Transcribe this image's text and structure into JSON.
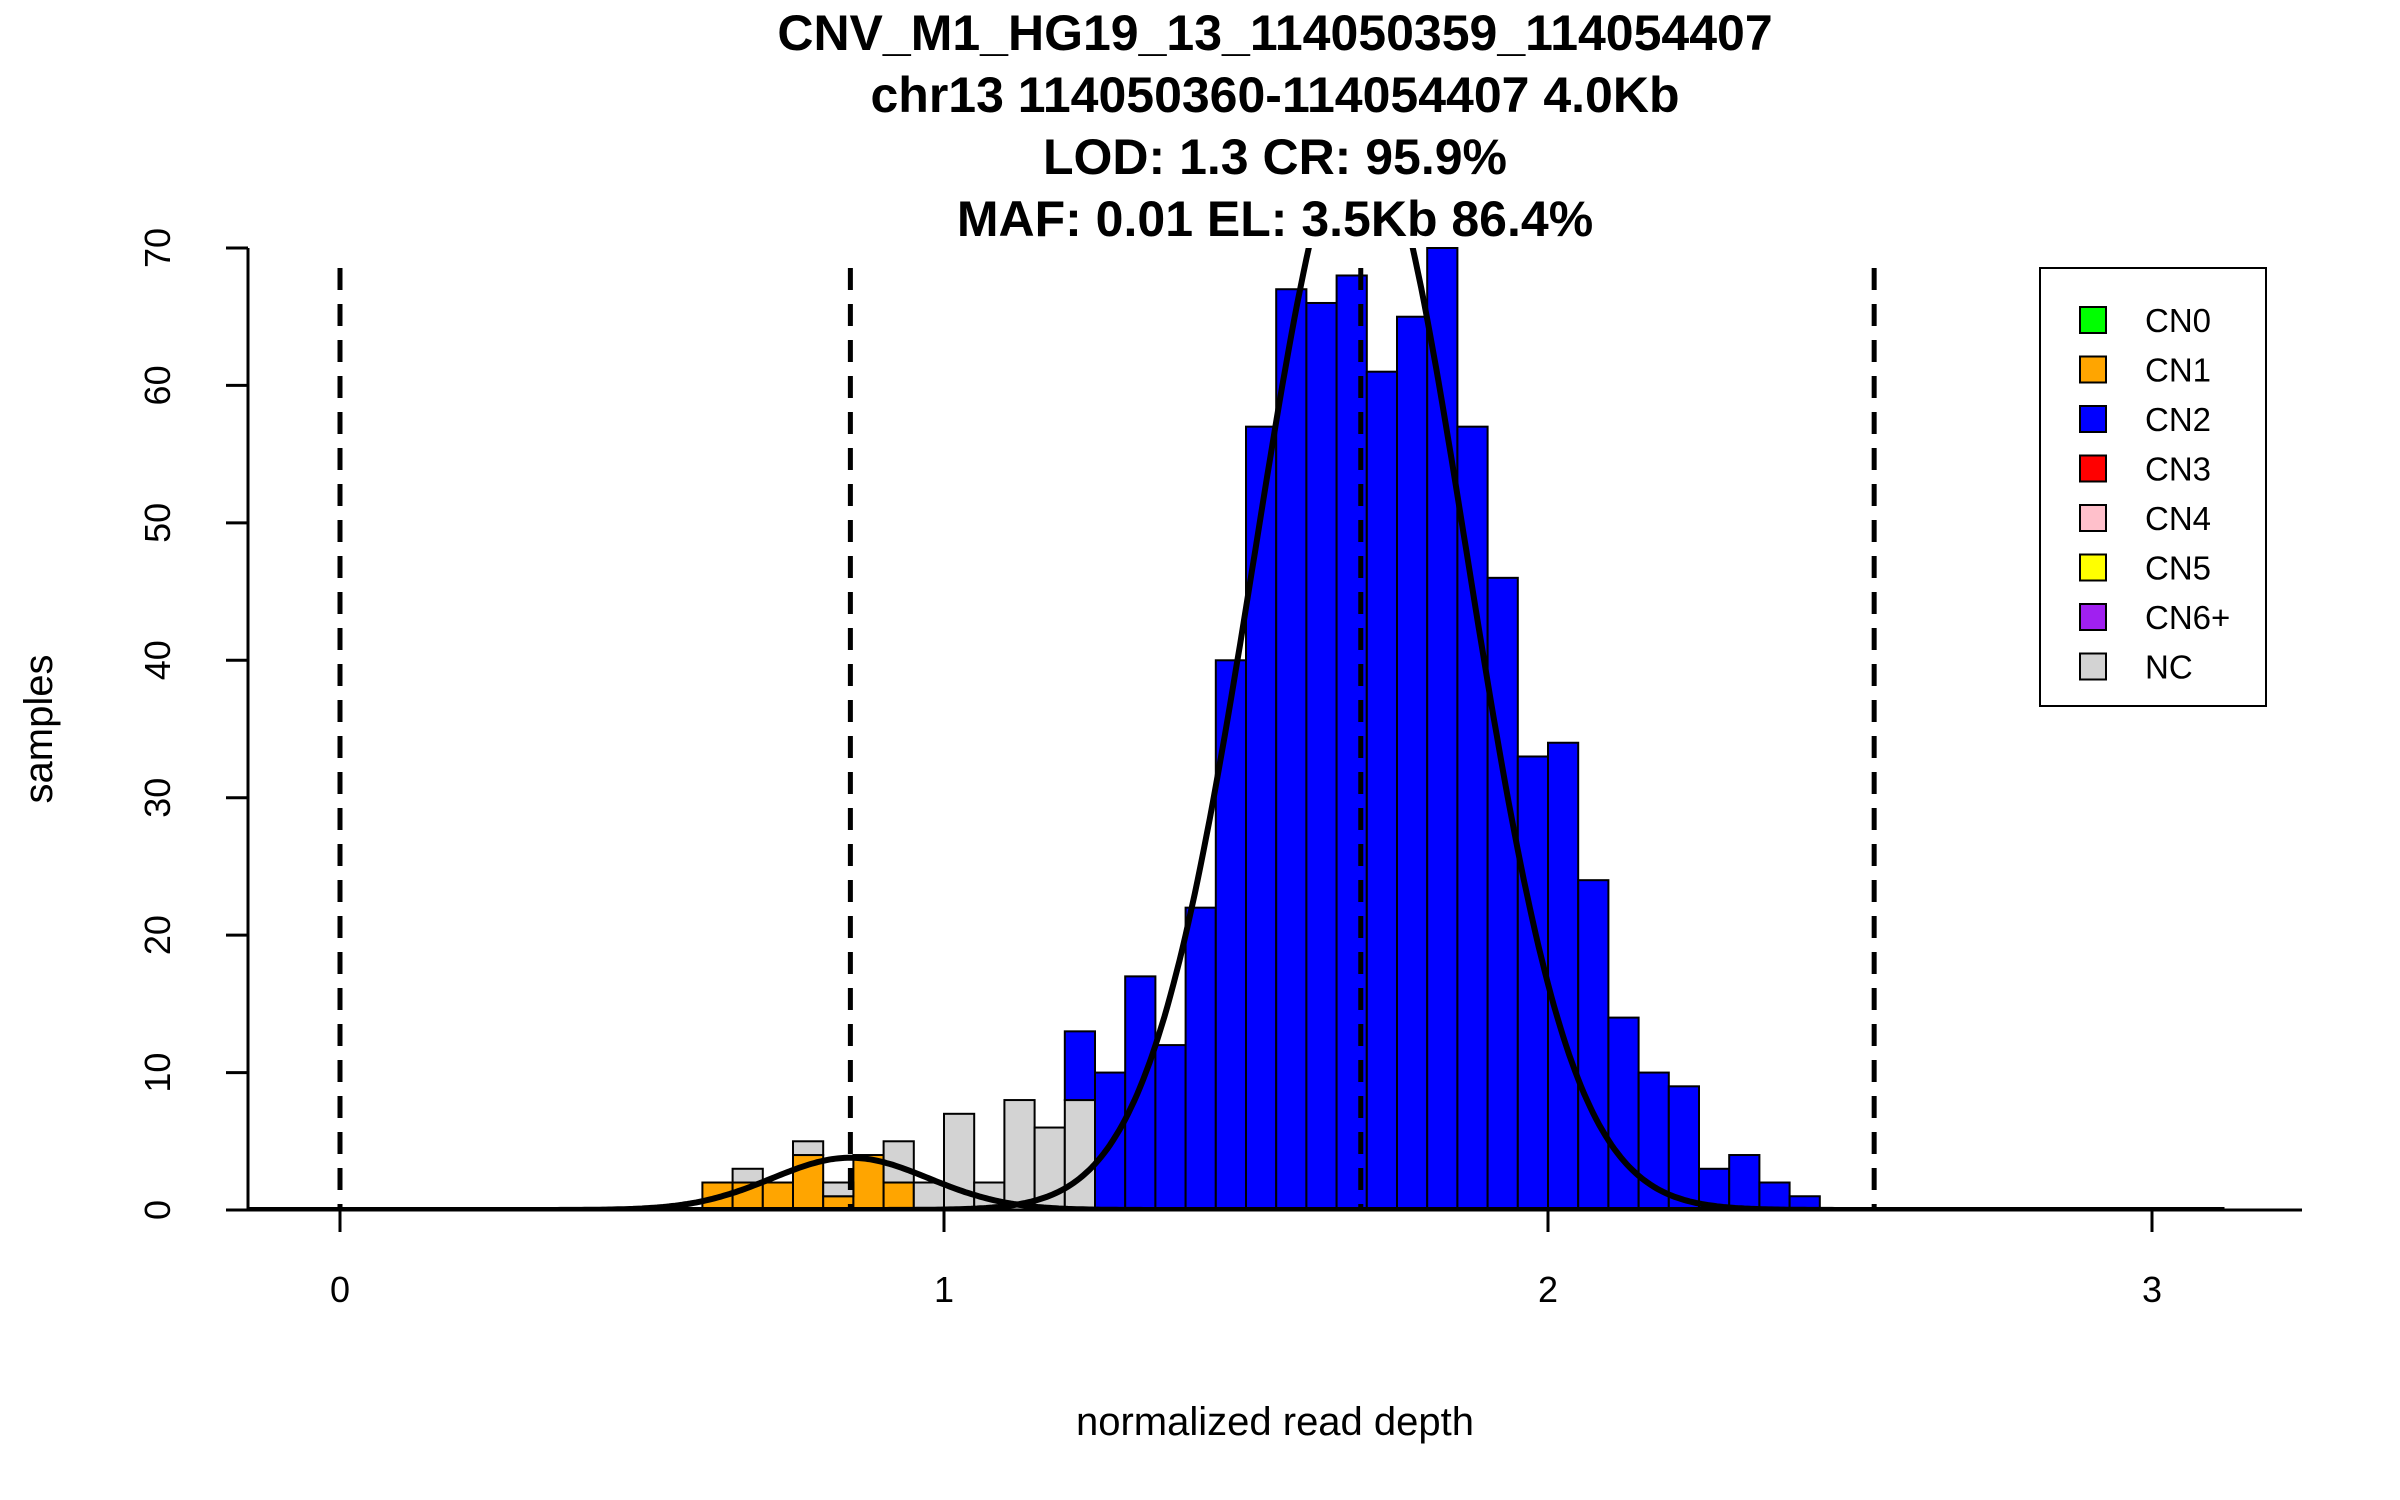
{
  "chart_data": {
    "type": "bar",
    "title_lines": [
      "CNV_M1_HG19_13_114050359_114054407",
      "chr13 114050360-114054407 4.0Kb",
      "LOD: 1.3 CR: 95.9%",
      "MAF: 0.01 EL: 3.5Kb 86.4%"
    ],
    "xlabel": "normalized read depth",
    "ylabel": "samples",
    "xlim": [
      -0.15,
      3.25
    ],
    "ylim": [
      0,
      70
    ],
    "x_ticks": [
      "0",
      "1",
      "2",
      "3"
    ],
    "y_ticks": [
      "0",
      "10",
      "20",
      "30",
      "40",
      "50",
      "60",
      "70"
    ],
    "bin_width": 0.05,
    "series": [
      {
        "name": "CN1",
        "color": "#FFA500",
        "bins": [
          [
            0.6,
            2
          ],
          [
            0.65,
            2
          ],
          [
            0.7,
            2
          ],
          [
            0.75,
            4
          ],
          [
            0.8,
            1
          ],
          [
            0.85,
            4
          ],
          [
            0.9,
            2
          ],
          [
            0.95,
            0
          ]
        ]
      },
      {
        "name": "NC",
        "color": "#D3D3D3",
        "bins": [
          [
            0.6,
            0
          ],
          [
            0.65,
            1
          ],
          [
            0.7,
            0
          ],
          [
            0.75,
            1
          ],
          [
            0.8,
            1
          ],
          [
            0.85,
            0
          ],
          [
            0.9,
            3
          ],
          [
            0.95,
            2
          ],
          [
            1.0,
            7
          ],
          [
            1.05,
            2
          ],
          [
            1.1,
            8
          ],
          [
            1.15,
            6
          ],
          [
            1.2,
            8
          ]
        ]
      },
      {
        "name": "CN2",
        "color": "#0000FF",
        "bins": [
          [
            1.2,
            5
          ],
          [
            1.25,
            10
          ],
          [
            1.3,
            17
          ],
          [
            1.35,
            12
          ],
          [
            1.4,
            22
          ],
          [
            1.45,
            40
          ],
          [
            1.5,
            57
          ],
          [
            1.55,
            67
          ],
          [
            1.6,
            66
          ],
          [
            1.65,
            68
          ],
          [
            1.7,
            61
          ],
          [
            1.75,
            65
          ],
          [
            1.8,
            70
          ],
          [
            1.85,
            57
          ],
          [
            1.9,
            46
          ],
          [
            1.95,
            33
          ],
          [
            2.0,
            34
          ],
          [
            2.05,
            24
          ],
          [
            2.1,
            14
          ],
          [
            2.15,
            10
          ],
          [
            2.2,
            9
          ],
          [
            2.25,
            3
          ],
          [
            2.3,
            4
          ],
          [
            2.35,
            2
          ],
          [
            2.4,
            1
          ]
        ]
      }
    ],
    "curves": [
      {
        "name": "CN1 fit",
        "mean": 0.845,
        "sd": 0.13,
        "peak": 3.8
      },
      {
        "name": "CN2 fit",
        "mean": 1.69,
        "sd": 0.175,
        "peak": 79
      }
    ],
    "thresholds": [
      0,
      0.845,
      1.69,
      2.54
    ],
    "legend": [
      {
        "label": "CN0",
        "color": "#00FF00"
      },
      {
        "label": "CN1",
        "color": "#FFA500"
      },
      {
        "label": "CN2",
        "color": "#0000FF"
      },
      {
        "label": "CN3",
        "color": "#FF0000"
      },
      {
        "label": "CN4",
        "color": "#FFC0CB"
      },
      {
        "label": "CN5",
        "color": "#FFFF00"
      },
      {
        "label": "CN6+",
        "color": "#A020F0"
      },
      {
        "label": "NC",
        "color": "#D3D3D3"
      }
    ],
    "legend_position": "top-right"
  }
}
